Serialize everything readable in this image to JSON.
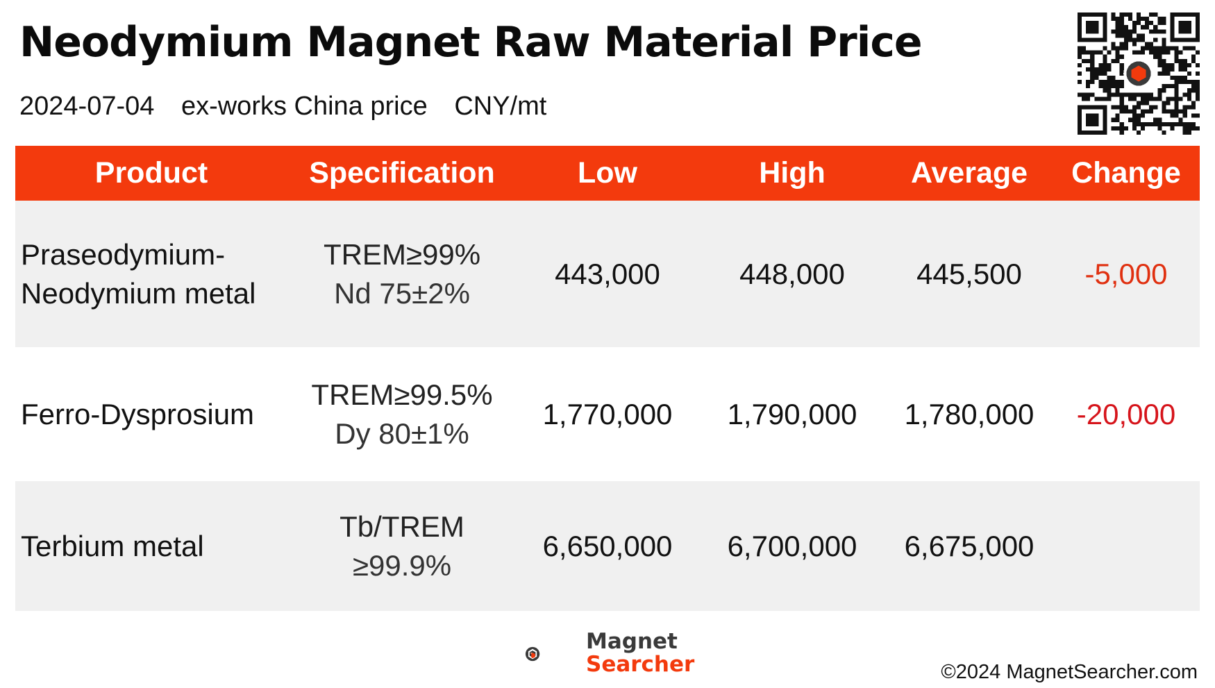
{
  "header": {
    "title": "Neodymium Magnet Raw Material Price",
    "date": "2024-07-04",
    "price_basis": "ex-works China price",
    "unit": "CNY/mt"
  },
  "table": {
    "columns": [
      "Product",
      "Specification",
      "Low",
      "High",
      "Average",
      "Change"
    ],
    "rows": [
      {
        "product_line1": "Praseodymium-",
        "product_line2": "Neodymium metal",
        "spec_line1": "TREM≥99%",
        "spec_line2": "Nd 75±2%",
        "low": "443,000",
        "high": "448,000",
        "average": "445,500",
        "change": "-5,000"
      },
      {
        "product_line1": "Ferro-Dysprosium",
        "product_line2": "",
        "spec_line1": "TREM≥99.5%",
        "spec_line2": "Dy 80±1%",
        "low": "1,770,000",
        "high": "1,790,000",
        "average": "1,780,000",
        "change": "-20,000"
      },
      {
        "product_line1": "Terbium metal",
        "product_line2": "",
        "spec_line1": "Tb/TREM",
        "spec_line2": "≥99.9%",
        "low": "6,650,000",
        "high": "6,700,000",
        "average": "6,675,000",
        "change": ""
      }
    ]
  },
  "footer": {
    "logo_line1": "Magnet",
    "logo_line2": "Searcher",
    "copyright": "©2024 MagnetSearcher.com"
  },
  "colors": {
    "header_bar": "#f33a0d",
    "row_shade": "#f0f0f0",
    "negative_change": "#e03010"
  },
  "icons": [
    "qr-code-icon",
    "magnet-searcher-logo-icon"
  ]
}
